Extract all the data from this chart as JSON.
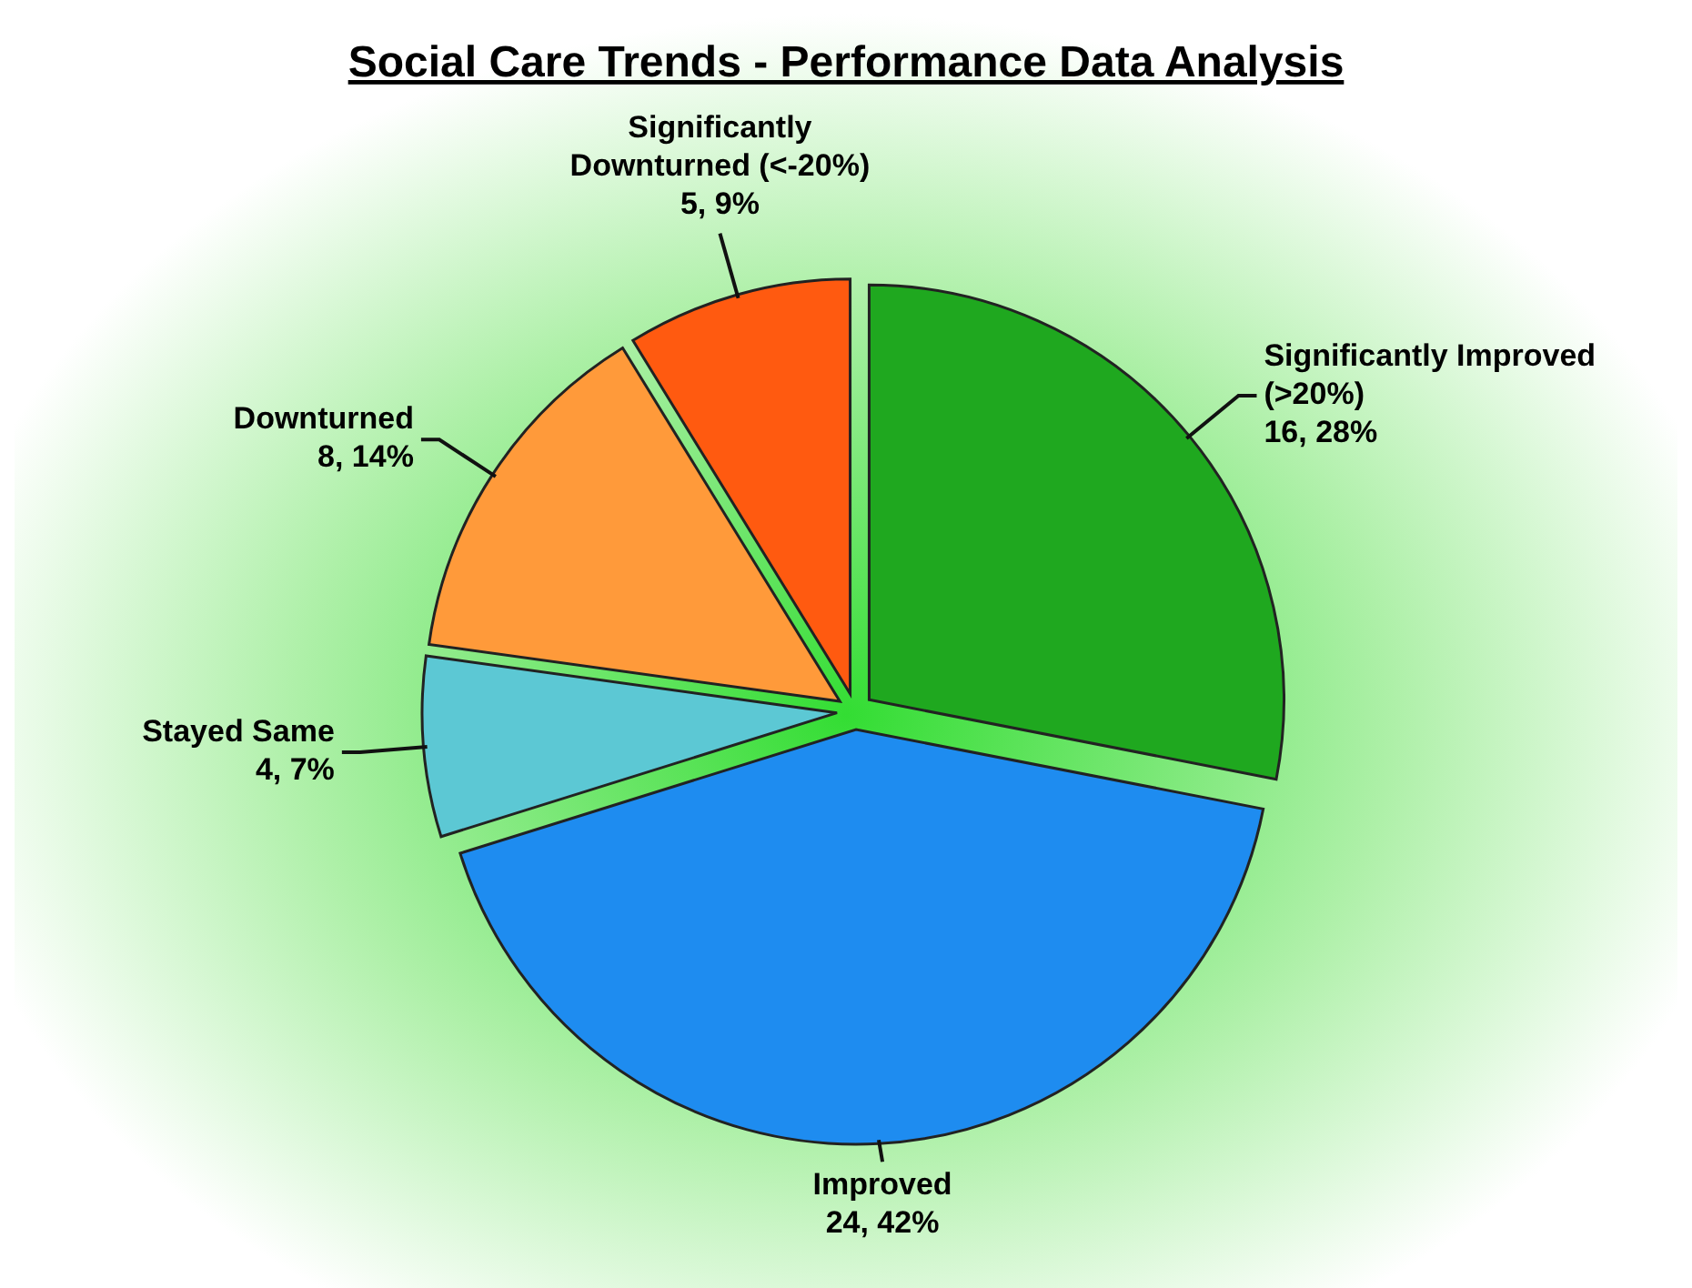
{
  "chart_data": {
    "type": "pie",
    "title": "Social Care Trends - Performance Data Analysis",
    "categories": [
      "Significantly Improved (>20%)",
      "Improved",
      "Stayed Same",
      "Downturned",
      "Significantly Downturned (<-20%)"
    ],
    "values": [
      16,
      24,
      4,
      8,
      5
    ],
    "colors": [
      "#1fa81f",
      "#1e8cf0",
      "#5cc8d4",
      "#ff9a3a",
      "#ff5a10"
    ],
    "value_labels": [
      "16, 28%",
      "24, 42%",
      "4, 7%",
      "8, 14%",
      "5, 9%"
    ]
  }
}
